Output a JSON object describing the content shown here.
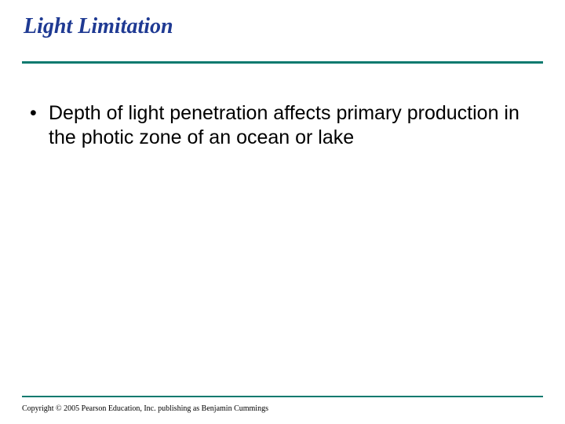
{
  "slide": {
    "title": "Light Limitation",
    "title_color": "#1f3a93",
    "title_fontsize": 28,
    "rule_color": "#0a7a6f",
    "background_color": "#ffffff",
    "bullets": [
      {
        "text": "Depth of light penetration affects primary production in the photic zone of an ocean or lake"
      }
    ],
    "bullet_fontsize": 25,
    "bullet_color": "#000000",
    "copyright": "Copyright © 2005 Pearson Education, Inc. publishing as Benjamin Cummings",
    "copyright_fontsize": 10
  }
}
